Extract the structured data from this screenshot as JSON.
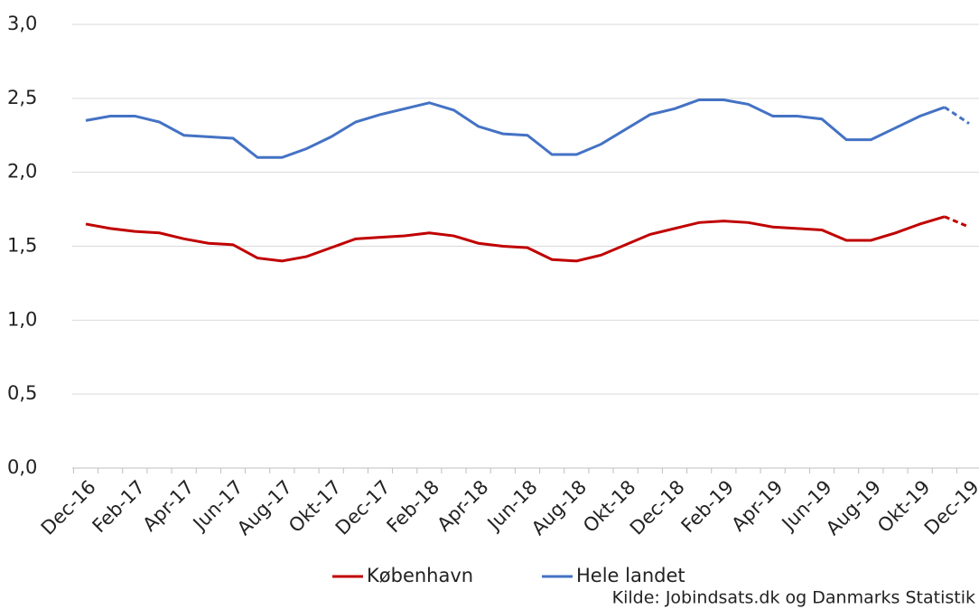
{
  "chart_data": {
    "type": "line",
    "categories": [
      "Dec-16",
      null,
      "Feb-17",
      null,
      "Apr-17",
      null,
      "Jun-17",
      null,
      "Aug-17",
      null,
      "Okt-17",
      null,
      "Dec-17",
      null,
      "Feb-18",
      null,
      "Apr-18",
      null,
      "Jun-18",
      null,
      "Aug-18",
      null,
      "Okt-18",
      null,
      "Dec-18",
      null,
      "Feb-19",
      null,
      "Apr-19",
      null,
      "Jun-19",
      null,
      "Aug-19",
      null,
      "Okt-19",
      null,
      "Dec-19"
    ],
    "series": [
      {
        "name": "København",
        "color": "#c00000",
        "values": [
          1.65,
          1.62,
          1.6,
          1.59,
          1.55,
          1.52,
          1.51,
          1.42,
          1.4,
          1.43,
          1.49,
          1.55,
          1.56,
          1.57,
          1.59,
          1.57,
          1.52,
          1.5,
          1.49,
          1.41,
          1.4,
          1.44,
          1.51,
          1.58,
          1.62,
          1.66,
          1.67,
          1.66,
          1.63,
          1.62,
          1.61,
          1.54,
          1.54,
          1.59,
          1.65,
          1.7,
          1.63
        ]
      },
      {
        "name": "Hele landet",
        "color": "#4472c4",
        "values": [
          2.35,
          2.38,
          2.38,
          2.34,
          2.25,
          2.24,
          2.23,
          2.1,
          2.1,
          2.16,
          2.24,
          2.34,
          2.39,
          2.43,
          2.47,
          2.42,
          2.31,
          2.26,
          2.25,
          2.12,
          2.12,
          2.19,
          2.29,
          2.39,
          2.43,
          2.49,
          2.49,
          2.46,
          2.38,
          2.38,
          2.36,
          2.22,
          2.22,
          2.3,
          2.38,
          2.44,
          2.33
        ]
      }
    ],
    "dash_last_segment": true,
    "ylim": [
      0,
      3
    ],
    "yticks": [
      {
        "value": 0,
        "label": "0,0"
      },
      {
        "value": 0.5,
        "label": "0,5"
      },
      {
        "value": 1,
        "label": "1,0"
      },
      {
        "value": 1.5,
        "label": "1,5"
      },
      {
        "value": 2,
        "label": "2,0"
      },
      {
        "value": 2.5,
        "label": "2,5"
      },
      {
        "value": 3,
        "label": "3,0"
      }
    ],
    "grid": true,
    "source": "Kilde:  Jobindsats.dk og Danmarks Statistik"
  }
}
